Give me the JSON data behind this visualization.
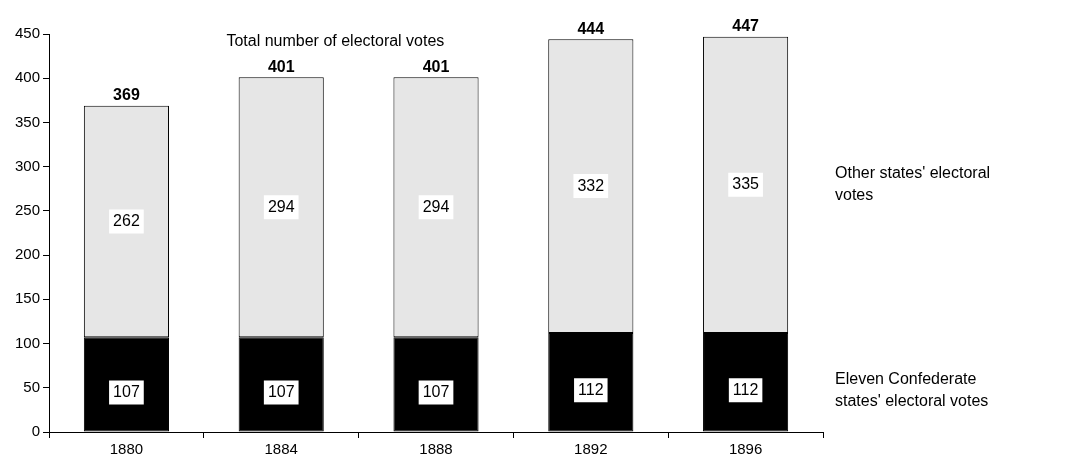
{
  "chart_data": {
    "type": "bar",
    "title": "Total number of electoral votes",
    "categories": [
      "1880",
      "1884",
      "1888",
      "1892",
      "1896"
    ],
    "stacked": true,
    "series": [
      {
        "name": "Eleven Confederate states' electoral votes",
        "color": "#000000",
        "values": [
          107,
          107,
          107,
          112,
          112
        ]
      },
      {
        "name": "Other states' electoral votes",
        "color": "#e6e6e6",
        "values": [
          262,
          294,
          294,
          332,
          335
        ]
      }
    ],
    "totals": [
      "369",
      "401",
      "401",
      "444",
      "447"
    ],
    "data_labels": true,
    "ylim": [
      0,
      450
    ],
    "yticks": [
      0,
      50,
      100,
      150,
      200,
      250,
      300,
      350,
      400,
      450
    ],
    "grid": false,
    "legend": false
  }
}
